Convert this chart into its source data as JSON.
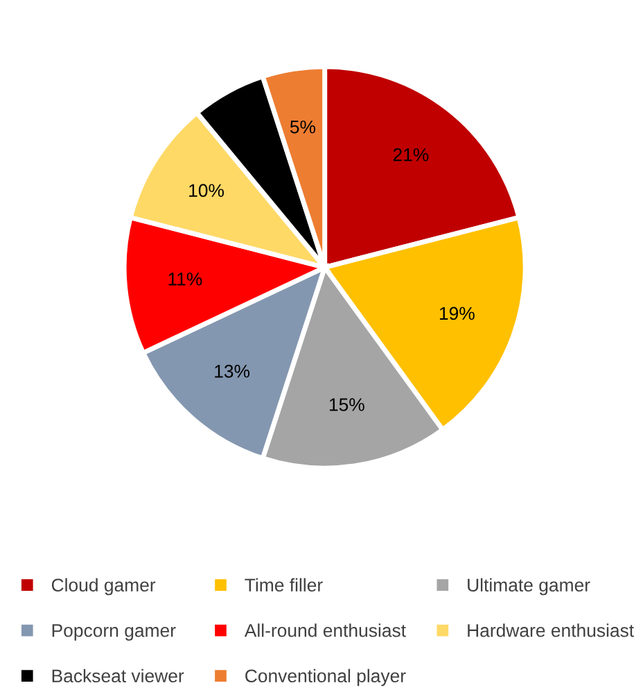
{
  "chart_data": {
    "type": "pie",
    "categories": [
      "Cloud gamer",
      "Time filler",
      "Ultimate gamer",
      "Popcorn gamer",
      "All-round enthusiast",
      "Hardware enthusiast",
      "Backseat viewer",
      "Conventional player"
    ],
    "values": [
      21,
      19,
      15,
      13,
      11,
      10,
      6,
      5
    ],
    "colors": [
      "#c00000",
      "#ffc000",
      "#a5a5a5",
      "#8497b0",
      "#ff0000",
      "#ffd966",
      "#000000",
      "#ed7d31"
    ],
    "value_labels": [
      "21%",
      "19%",
      "15%",
      "13%",
      "11%",
      "10%",
      null,
      "5%"
    ],
    "legend": "bottom"
  }
}
